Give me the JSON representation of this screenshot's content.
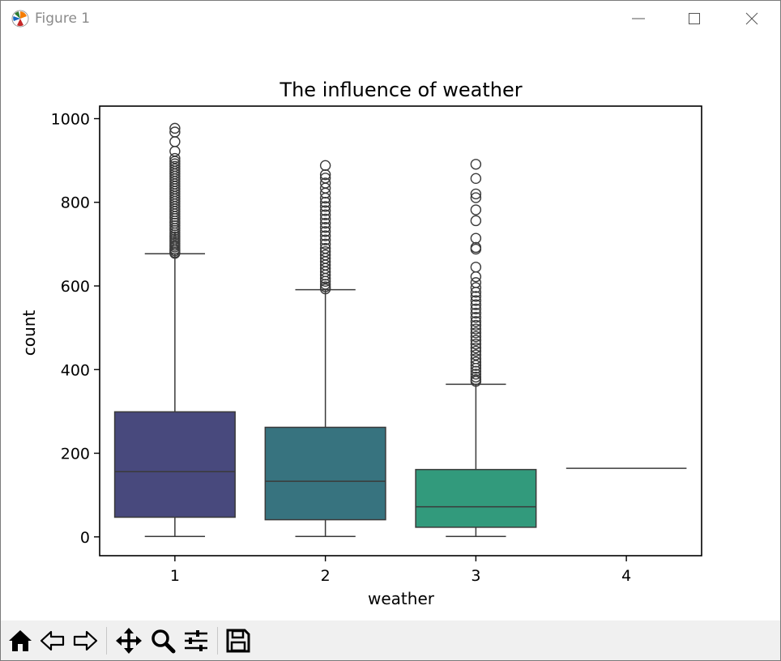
{
  "window": {
    "title": "Figure 1",
    "icons": {
      "app": "matplotlib-icon",
      "minimize": "minimize-icon",
      "maximize": "maximize-icon",
      "close": "close-icon"
    }
  },
  "toolbar": {
    "buttons": [
      {
        "icon": "home-icon"
      },
      {
        "icon": "back-arrow-icon"
      },
      {
        "icon": "forward-arrow-icon"
      },
      {
        "icon": "pan-icon"
      },
      {
        "icon": "zoom-icon"
      },
      {
        "icon": "configure-subplots-icon"
      },
      {
        "icon": "save-icon"
      }
    ]
  },
  "chart_data": {
    "type": "box",
    "title": "The influence of weather",
    "xlabel": "weather",
    "ylabel": "count",
    "categories": [
      "1",
      "2",
      "3",
      "4"
    ],
    "ylim": [
      -45,
      1030
    ],
    "yticks": [
      0,
      200,
      400,
      600,
      800,
      1000
    ],
    "grid": false,
    "legend": "none",
    "colors": [
      "#48497d",
      "#37737f",
      "#329a7c",
      "#7ad151"
    ],
    "boxes": [
      {
        "category": "1",
        "whisker_low": 1,
        "q1": 47,
        "median": 156,
        "q3": 299,
        "whisker_high": 677,
        "outliers": [
          678,
          680,
          684,
          688,
          693,
          697,
          702,
          707,
          712,
          717,
          722,
          727,
          733,
          738,
          744,
          750,
          755,
          761,
          766,
          772,
          778,
          784,
          790,
          796,
          802,
          808,
          814,
          820,
          826,
          832,
          838,
          844,
          850,
          856,
          862,
          868,
          874,
          880,
          886,
          892,
          898,
          905,
          922,
          945,
          968,
          977
        ]
      },
      {
        "category": "2",
        "whisker_low": 1,
        "q1": 41,
        "median": 133,
        "q3": 262,
        "whisker_high": 591,
        "outliers": [
          593,
          598,
          604,
          611,
          618,
          626,
          634,
          642,
          650,
          658,
          666,
          674,
          682,
          690,
          700,
          710,
          720,
          730,
          740,
          750,
          760,
          770,
          780,
          790,
          800,
          810,
          822,
          834,
          846,
          858,
          866,
          888
        ]
      },
      {
        "category": "3",
        "whisker_low": 1,
        "q1": 23,
        "median": 72,
        "q3": 161,
        "whisker_high": 365,
        "outliers": [
          372,
          376,
          382,
          389,
          396,
          403,
          410,
          418,
          426,
          435,
          444,
          452,
          461,
          470,
          479,
          488,
          497,
          506,
          515,
          525,
          535,
          545,
          555,
          565,
          575,
          585,
          596,
          608,
          622,
          645,
          688,
          692,
          714,
          756,
          782,
          811,
          820,
          857,
          891
        ]
      },
      {
        "category": "4",
        "whisker_low": 164,
        "q1": 164,
        "median": 164,
        "q3": 164,
        "whisker_high": 164,
        "outliers": []
      }
    ]
  }
}
